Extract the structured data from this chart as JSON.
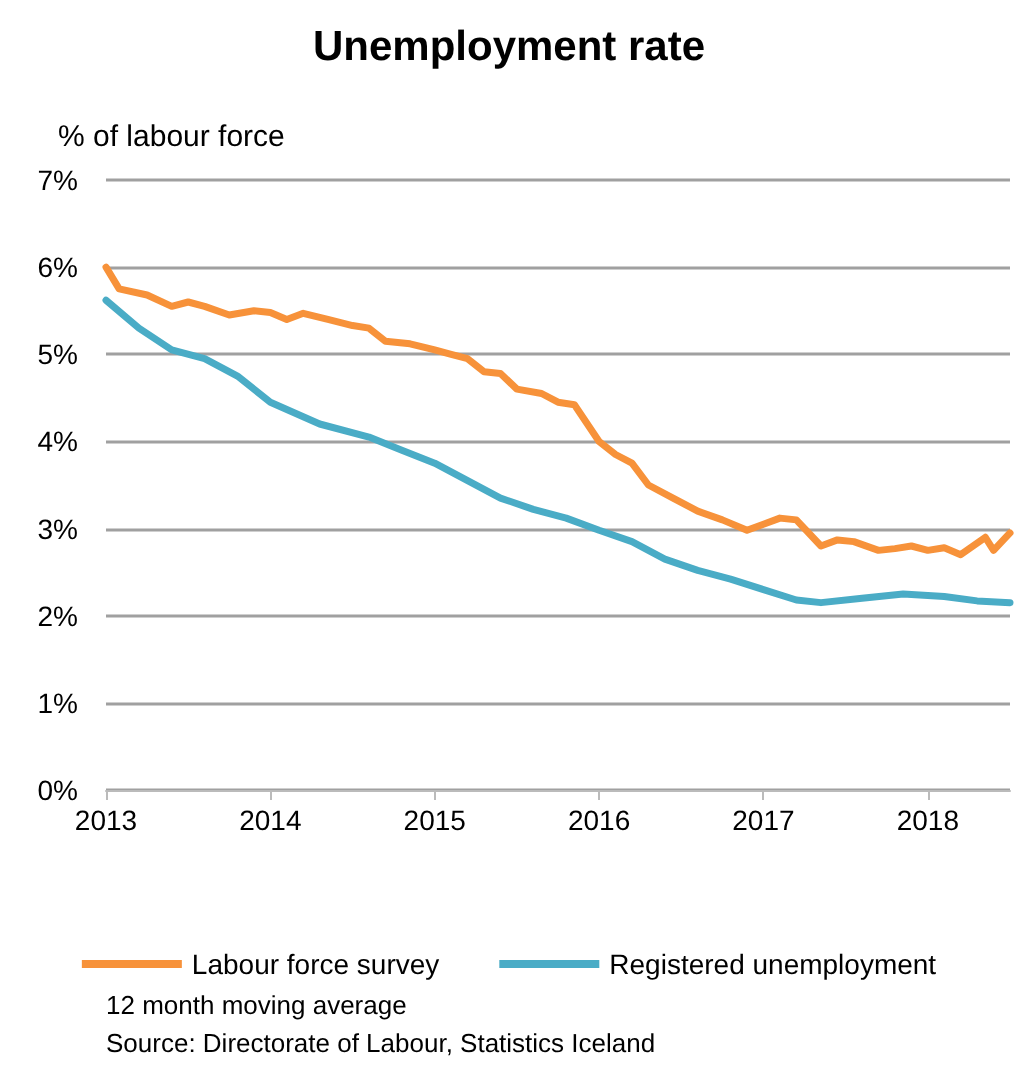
{
  "chart_data": {
    "type": "line",
    "title": "Unemployment rate",
    "ylabel": "% of labour force",
    "xlim": [
      2013,
      2018.5
    ],
    "xticks": [
      2013,
      2014,
      2015,
      2016,
      2017,
      2018
    ],
    "ylim": [
      0,
      7
    ],
    "yticks": [
      {
        "value": 0,
        "label": "0%"
      },
      {
        "value": 1,
        "label": "1%"
      },
      {
        "value": 2,
        "label": "2%"
      },
      {
        "value": 3,
        "label": "3%"
      },
      {
        "value": 4,
        "label": "4%"
      },
      {
        "value": 5,
        "label": "5%"
      },
      {
        "value": 6,
        "label": "6%"
      },
      {
        "value": 7,
        "label": "7%"
      }
    ],
    "grid": "y",
    "legend": "bottom",
    "marker": "none",
    "line_style": "solid",
    "series": [
      {
        "name": "Labour force survey",
        "color": "#f7923a",
        "x": [
          2013,
          2013.08,
          2013.25,
          2013.4,
          2013.5,
          2013.6,
          2013.75,
          2013.9,
          2014,
          2014.1,
          2014.2,
          2014.35,
          2014.5,
          2014.6,
          2014.7,
          2014.85,
          2015,
          2015.1,
          2015.2,
          2015.3,
          2015.4,
          2015.5,
          2015.65,
          2015.75,
          2015.85,
          2016,
          2016.1,
          2016.2,
          2016.3,
          2016.45,
          2016.6,
          2016.75,
          2016.9,
          2017,
          2017.1,
          2017.2,
          2017.35,
          2017.45,
          2017.55,
          2017.7,
          2017.8,
          2017.9,
          2018,
          2018.1,
          2018.2,
          2018.35,
          2018.4,
          2018.5
        ],
        "values": [
          6.0,
          5.75,
          5.68,
          5.55,
          5.6,
          5.55,
          5.45,
          5.5,
          5.48,
          5.4,
          5.47,
          5.4,
          5.33,
          5.3,
          5.15,
          5.12,
          5.05,
          5.0,
          4.95,
          4.8,
          4.78,
          4.6,
          4.55,
          4.45,
          4.42,
          4.0,
          3.85,
          3.75,
          3.5,
          3.35,
          3.2,
          3.1,
          2.98,
          3.05,
          3.12,
          3.1,
          2.8,
          2.87,
          2.85,
          2.75,
          2.77,
          2.8,
          2.75,
          2.78,
          2.7,
          2.9,
          2.75,
          2.95
        ]
      },
      {
        "name": "Registered unemployment",
        "color": "#4aacc6",
        "x": [
          2013,
          2013.2,
          2013.4,
          2013.6,
          2013.8,
          2014,
          2014.3,
          2014.6,
          2014.8,
          2015,
          2015.2,
          2015.4,
          2015.6,
          2015.8,
          2016,
          2016.2,
          2016.4,
          2016.6,
          2016.8,
          2017,
          2017.2,
          2017.35,
          2017.6,
          2017.85,
          2018.1,
          2018.3,
          2018.5
        ],
        "values": [
          5.62,
          5.3,
          5.05,
          4.95,
          4.75,
          4.45,
          4.2,
          4.05,
          3.9,
          3.75,
          3.55,
          3.35,
          3.22,
          3.12,
          2.98,
          2.85,
          2.65,
          2.52,
          2.42,
          2.3,
          2.18,
          2.15,
          2.2,
          2.25,
          2.22,
          2.17,
          2.15
        ]
      }
    ],
    "annotations": [
      "12 month moving average",
      "Source: Directorate of Labour, Statistics Iceland"
    ]
  }
}
